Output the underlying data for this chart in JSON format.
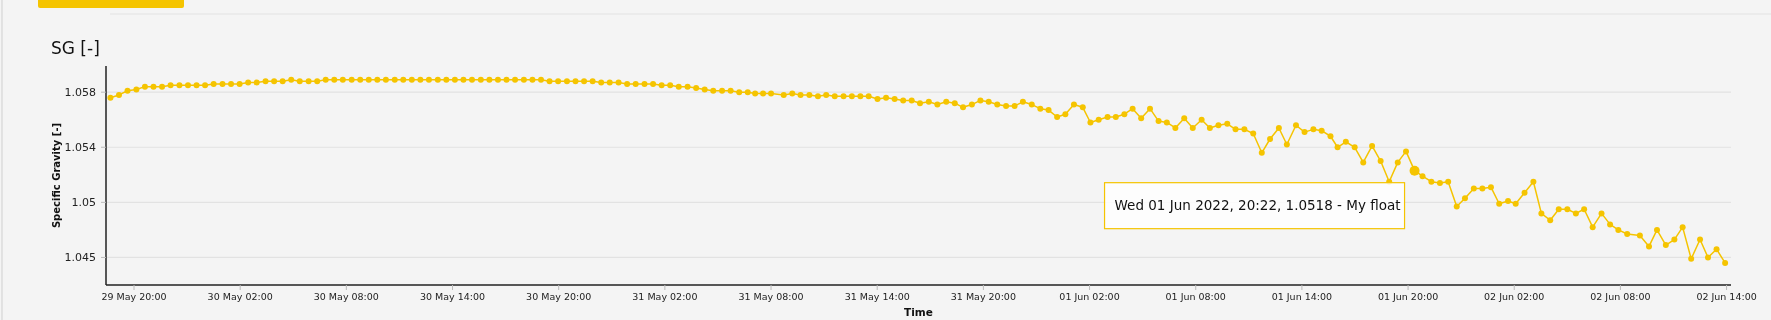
{
  "chart_data": {
    "type": "line",
    "title": "SG [-]",
    "xlabel": "Time",
    "ylabel": "Specific Gravity [-]",
    "xlim": [
      "2022-05-29T18:25",
      "2022-06-02T14:15"
    ],
    "xticks": [
      {
        "value": "2022-05-29T20:00",
        "label": "29 May 20:00"
      },
      {
        "value": "2022-05-30T02:00",
        "label": "30 May 02:00"
      },
      {
        "value": "2022-05-30T08:00",
        "label": "30 May 08:00"
      },
      {
        "value": "2022-05-30T14:00",
        "label": "30 May 14:00"
      },
      {
        "value": "2022-05-30T20:00",
        "label": "30 May 20:00"
      },
      {
        "value": "2022-05-31T02:00",
        "label": "31 May 02:00"
      },
      {
        "value": "2022-05-31T08:00",
        "label": "31 May 08:00"
      },
      {
        "value": "2022-05-31T14:00",
        "label": "31 May 14:00"
      },
      {
        "value": "2022-05-31T20:00",
        "label": "31 May 20:00"
      },
      {
        "value": "2022-06-01T02:00",
        "label": "01 Jun 02:00"
      },
      {
        "value": "2022-06-01T08:00",
        "label": "01 Jun 08:00"
      },
      {
        "value": "2022-06-01T14:00",
        "label": "01 Jun 14:00"
      },
      {
        "value": "2022-06-01T20:00",
        "label": "01 Jun 20:00"
      },
      {
        "value": "2022-06-02T02:00",
        "label": "02 Jun 02:00"
      },
      {
        "value": "2022-06-02T08:00",
        "label": "02 Jun 08:00"
      },
      {
        "value": "2022-06-02T14:00",
        "label": "02 Jun 14:00"
      }
    ],
    "ylim": [
      1.0435,
      1.0594
    ],
    "yticks": [
      {
        "value": 1.0455,
        "label": "1.045"
      },
      {
        "value": 1.0495,
        "label": "1.05"
      },
      {
        "value": 1.0535,
        "label": "1.054"
      },
      {
        "value": 1.0575,
        "label": "1.058"
      }
    ],
    "grid": "y",
    "marker": "circle",
    "line_style": "solid",
    "annotations": [
      {
        "text": "Wed 01 Jun 2022, 20:22, 1.0518 - My float",
        "x": "2022-06-01T20:22",
        "y": 1.0518
      }
    ],
    "series": [
      {
        "color": "#f5c400",
        "x": [
          "2022-05-29T18:40",
          "2022-05-29T19:09",
          "2022-05-29T19:38",
          "2022-05-29T20:08",
          "2022-05-29T20:37",
          "2022-05-29T21:06",
          "2022-05-29T21:35",
          "2022-05-29T22:04",
          "2022-05-29T22:34",
          "2022-05-29T23:03",
          "2022-05-29T23:32",
          "2022-05-30T00:01",
          "2022-05-30T00:30",
          "2022-05-30T01:00",
          "2022-05-30T01:29",
          "2022-05-30T01:58",
          "2022-05-30T02:27",
          "2022-05-30T02:56",
          "2022-05-30T03:26",
          "2022-05-30T03:55",
          "2022-05-30T04:24",
          "2022-05-30T04:53",
          "2022-05-30T05:22",
          "2022-05-30T05:52",
          "2022-05-30T06:21",
          "2022-05-30T06:50",
          "2022-05-30T07:19",
          "2022-05-30T07:48",
          "2022-05-30T08:18",
          "2022-05-30T08:47",
          "2022-05-30T09:16",
          "2022-05-30T09:45",
          "2022-05-30T10:14",
          "2022-05-30T10:44",
          "2022-05-30T11:13",
          "2022-05-30T11:42",
          "2022-05-30T12:11",
          "2022-05-30T12:40",
          "2022-05-30T13:10",
          "2022-05-30T13:39",
          "2022-05-30T14:08",
          "2022-05-30T14:37",
          "2022-05-30T15:06",
          "2022-05-30T15:36",
          "2022-05-30T16:05",
          "2022-05-30T16:34",
          "2022-05-30T17:03",
          "2022-05-30T17:32",
          "2022-05-30T18:02",
          "2022-05-30T18:31",
          "2022-05-30T19:00",
          "2022-05-30T19:29",
          "2022-05-30T19:58",
          "2022-05-30T20:28",
          "2022-05-30T20:57",
          "2022-05-30T21:26",
          "2022-05-30T21:55",
          "2022-05-30T22:24",
          "2022-05-30T22:53",
          "2022-05-30T23:23",
          "2022-05-30T23:52",
          "2022-05-31T00:21",
          "2022-05-31T00:51",
          "2022-05-31T01:20",
          "2022-05-31T01:49",
          "2022-05-31T02:18",
          "2022-05-31T02:47",
          "2022-05-31T03:17",
          "2022-05-31T03:46",
          "2022-05-31T04:15",
          "2022-05-31T04:44",
          "2022-05-31T05:14",
          "2022-05-31T05:43",
          "2022-05-31T06:12",
          "2022-05-31T06:41",
          "2022-05-31T07:06",
          "2022-05-31T07:33",
          "2022-05-31T08:00",
          "2022-05-31T08:43",
          "2022-05-31T09:12",
          "2022-05-31T09:40",
          "2022-05-31T10:10",
          "2022-05-31T10:39",
          "2022-05-31T11:07",
          "2022-05-31T11:36",
          "2022-05-31T12:06",
          "2022-05-31T12:34",
          "2022-05-31T13:03",
          "2022-05-31T13:31",
          "2022-05-31T14:01",
          "2022-05-31T14:30",
          "2022-05-31T14:59",
          "2022-05-31T15:28",
          "2022-05-31T15:57",
          "2022-05-31T16:25",
          "2022-05-31T16:55",
          "2022-05-31T17:24",
          "2022-05-31T17:54",
          "2022-05-31T18:23",
          "2022-05-31T18:51",
          "2022-05-31T19:21",
          "2022-05-31T19:50",
          "2022-05-31T20:18",
          "2022-05-31T20:47",
          "2022-05-31T21:17",
          "2022-05-31T21:46",
          "2022-05-31T22:14",
          "2022-05-31T22:44",
          "2022-05-31T23:13",
          "2022-05-31T23:41",
          "2022-06-01T00:10",
          "2022-06-01T00:38",
          "2022-06-01T01:07",
          "2022-06-01T01:37",
          "2022-06-01T02:03",
          "2022-06-01T02:31",
          "2022-06-01T03:01",
          "2022-06-01T03:29",
          "2022-06-01T03:58",
          "2022-06-01T04:26",
          "2022-06-01T04:55",
          "2022-06-01T05:25",
          "2022-06-01T05:54",
          "2022-06-01T06:22",
          "2022-06-01T06:51",
          "2022-06-01T07:21",
          "2022-06-01T07:50",
          "2022-06-01T08:20",
          "2022-06-01T08:48",
          "2022-06-01T09:17",
          "2022-06-01T09:47",
          "2022-06-01T10:15",
          "2022-06-01T10:45",
          "2022-06-01T11:15",
          "2022-06-01T11:44",
          "2022-06-01T12:12",
          "2022-06-01T12:42",
          "2022-06-01T13:09",
          "2022-06-01T13:40",
          "2022-06-01T14:09",
          "2022-06-01T14:39",
          "2022-06-01T15:07",
          "2022-06-01T15:37",
          "2022-06-01T16:01",
          "2022-06-01T16:29",
          "2022-06-01T16:59",
          "2022-06-01T17:28",
          "2022-06-01T17:58",
          "2022-06-01T18:27",
          "2022-06-01T18:56",
          "2022-06-01T19:25",
          "2022-06-01T19:53",
          "2022-06-01T20:22",
          "2022-06-01T20:49",
          "2022-06-01T21:19",
          "2022-06-01T21:48",
          "2022-06-01T22:16",
          "2022-06-01T22:45",
          "2022-06-01T23:13",
          "2022-06-01T23:43",
          "2022-06-02T00:12",
          "2022-06-02T00:41",
          "2022-06-02T01:09",
          "2022-06-02T01:39",
          "2022-06-02T02:05",
          "2022-06-02T02:35",
          "2022-06-02T03:05",
          "2022-06-02T03:32",
          "2022-06-02T04:02",
          "2022-06-02T04:31",
          "2022-06-02T05:00",
          "2022-06-02T05:29",
          "2022-06-02T05:57",
          "2022-06-02T06:26",
          "2022-06-02T06:56",
          "2022-06-02T07:25",
          "2022-06-02T07:53",
          "2022-06-02T08:23",
          "2022-06-02T09:06",
          "2022-06-02T09:37",
          "2022-06-02T10:04",
          "2022-06-02T10:34",
          "2022-06-02T11:03",
          "2022-06-02T11:31",
          "2022-06-02T12:00",
          "2022-06-02T12:30",
          "2022-06-02T12:57",
          "2022-06-02T13:26",
          "2022-06-02T13:55"
        ],
        "values": [
          1.0571,
          1.0573,
          1.0576,
          1.0577,
          1.0579,
          1.0579,
          1.0579,
          1.058,
          1.058,
          1.058,
          1.058,
          1.058,
          1.0581,
          1.0581,
          1.0581,
          1.0581,
          1.0582,
          1.0582,
          1.0583,
          1.0583,
          1.0583,
          1.0584,
          1.0583,
          1.0583,
          1.0583,
          1.0584,
          1.0584,
          1.0584,
          1.0584,
          1.0584,
          1.0584,
          1.0584,
          1.0584,
          1.0584,
          1.0584,
          1.0584,
          1.0584,
          1.0584,
          1.0584,
          1.0584,
          1.0584,
          1.0584,
          1.0584,
          1.0584,
          1.0584,
          1.0584,
          1.0584,
          1.0584,
          1.0584,
          1.0584,
          1.0584,
          1.0583,
          1.0583,
          1.0583,
          1.0583,
          1.0583,
          1.0583,
          1.0582,
          1.0582,
          1.0582,
          1.0581,
          1.0581,
          1.0581,
          1.0581,
          1.058,
          1.058,
          1.0579,
          1.0579,
          1.0578,
          1.0577,
          1.0576,
          1.0576,
          1.0576,
          1.0575,
          1.0575,
          1.0574,
          1.0574,
          1.0574,
          1.0573,
          1.0574,
          1.0573,
          1.0573,
          1.0572,
          1.0573,
          1.0572,
          1.0572,
          1.0572,
          1.0572,
          1.0572,
          1.057,
          1.0571,
          1.057,
          1.0569,
          1.0569,
          1.0567,
          1.0568,
          1.0566,
          1.0568,
          1.0567,
          1.0564,
          1.0566,
          1.0569,
          1.0568,
          1.0566,
          1.0565,
          1.0565,
          1.0568,
          1.0566,
          1.0563,
          1.0562,
          1.0557,
          1.0559,
          1.0566,
          1.0564,
          1.0553,
          1.0555,
          1.0557,
          1.0557,
          1.0559,
          1.0563,
          1.0556,
          1.0563,
          1.0554,
          1.0553,
          1.0549,
          1.0556,
          1.0549,
          1.0555,
          1.0549,
          1.0551,
          1.0552,
          1.0548,
          1.0548,
          1.0545,
          1.0531,
          1.0541,
          1.0549,
          1.0537,
          1.0551,
          1.0546,
          1.0548,
          1.0547,
          1.0543,
          1.0535,
          1.0539,
          1.0535,
          1.0524,
          1.0536,
          1.0525,
          1.051,
          1.0524,
          1.0532,
          1.0518,
          1.0514,
          1.051,
          1.0509,
          1.051,
          1.0492,
          1.0498,
          1.0505,
          1.0505,
          1.0506,
          1.0494,
          1.0496,
          1.0494,
          1.0502,
          1.051,
          1.0487,
          1.0482,
          1.049,
          1.049,
          1.0487,
          1.049,
          1.0477,
          1.0487,
          1.0479,
          1.0475,
          1.0472,
          1.0471,
          1.0463,
          1.0475,
          1.0464,
          1.0468,
          1.0477,
          1.0454,
          1.0468,
          1.0455,
          1.0461,
          1.0451
        ]
      }
    ]
  }
}
